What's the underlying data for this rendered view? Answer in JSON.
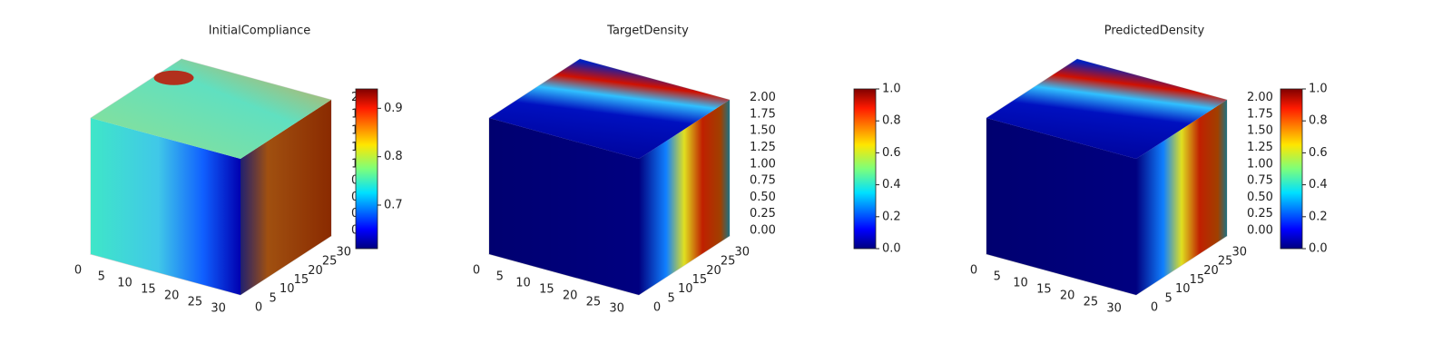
{
  "chart_data": [
    {
      "type": "voxel",
      "title": "InitialCompliance",
      "xlim": [
        0,
        32
      ],
      "ylim": [
        0,
        32
      ],
      "zlim": [
        0,
        2.05
      ],
      "xticks": [
        0,
        5,
        10,
        15,
        20,
        25,
        30
      ],
      "yticks": [
        0,
        5,
        10,
        15,
        20,
        25,
        30
      ],
      "zticks": [
        {
          "value": 0,
          "label": "0.00"
        },
        {
          "value": 0.25,
          "label": "0.25"
        },
        {
          "value": 0.5,
          "label": "0.50"
        },
        {
          "value": 0.75,
          "label": "0.75"
        },
        {
          "value": 1,
          "label": "1.00"
        },
        {
          "value": 1.25,
          "label": "1.25"
        },
        {
          "value": 1.5,
          "label": "1.50"
        },
        {
          "value": 1.75,
          "label": "1.75"
        },
        {
          "value": 2,
          "label": "2.00"
        }
      ],
      "colorbar": {
        "clim": [
          0.61,
          0.94
        ],
        "ticks": [
          0.7,
          0.8,
          0.9
        ]
      }
    },
    {
      "type": "voxel",
      "title": "TargetDensity",
      "xlim": [
        0,
        32
      ],
      "ylim": [
        0,
        32
      ],
      "zlim": [
        0,
        2.05
      ],
      "xticks": [
        0,
        5,
        10,
        15,
        20,
        25,
        30
      ],
      "yticks": [
        0,
        5,
        10,
        15,
        20,
        25,
        30
      ],
      "zticks": [
        {
          "value": 0,
          "label": "0.00"
        },
        {
          "value": 0.25,
          "label": "0.25"
        },
        {
          "value": 0.5,
          "label": "0.50"
        },
        {
          "value": 0.75,
          "label": "0.75"
        },
        {
          "value": 1,
          "label": "1.00"
        },
        {
          "value": 1.25,
          "label": "1.25"
        },
        {
          "value": 1.5,
          "label": "1.50"
        },
        {
          "value": 1.75,
          "label": "1.75"
        },
        {
          "value": 2,
          "label": "2.00"
        }
      ],
      "colorbar": {
        "clim": [
          0,
          1
        ],
        "ticks": [
          {
            "value": 0,
            "label": "0.0"
          },
          {
            "value": 0.2,
            "label": "0.2"
          },
          {
            "value": 0.4,
            "label": "0.4"
          },
          {
            "value": 0.6,
            "label": "0.6"
          },
          {
            "value": 0.8,
            "label": "0.8"
          },
          {
            "value": 1,
            "label": "1.0"
          }
        ]
      }
    },
    {
      "type": "voxel",
      "title": "PredictedDensity",
      "xlim": [
        0,
        32
      ],
      "ylim": [
        0,
        32
      ],
      "zlim": [
        0,
        2.05
      ],
      "xticks": [
        0,
        5,
        10,
        15,
        20,
        25,
        30
      ],
      "yticks": [
        0,
        5,
        10,
        15,
        20,
        25,
        30
      ],
      "zticks": [
        {
          "value": 0,
          "label": "0.00"
        },
        {
          "value": 0.25,
          "label": "0.25"
        },
        {
          "value": 0.5,
          "label": "0.50"
        },
        {
          "value": 0.75,
          "label": "0.75"
        },
        {
          "value": 1,
          "label": "1.00"
        },
        {
          "value": 1.25,
          "label": "1.25"
        },
        {
          "value": 1.5,
          "label": "1.50"
        },
        {
          "value": 1.75,
          "label": "1.75"
        },
        {
          "value": 2,
          "label": "2.00"
        }
      ],
      "colorbar": {
        "clim": [
          0,
          1
        ],
        "ticks": [
          {
            "value": 0,
            "label": "0.0"
          },
          {
            "value": 0.2,
            "label": "0.2"
          },
          {
            "value": 0.4,
            "label": "0.4"
          },
          {
            "value": 0.6,
            "label": "0.6"
          },
          {
            "value": 0.8,
            "label": "0.8"
          },
          {
            "value": 1,
            "label": "1.0"
          }
        ]
      }
    }
  ]
}
